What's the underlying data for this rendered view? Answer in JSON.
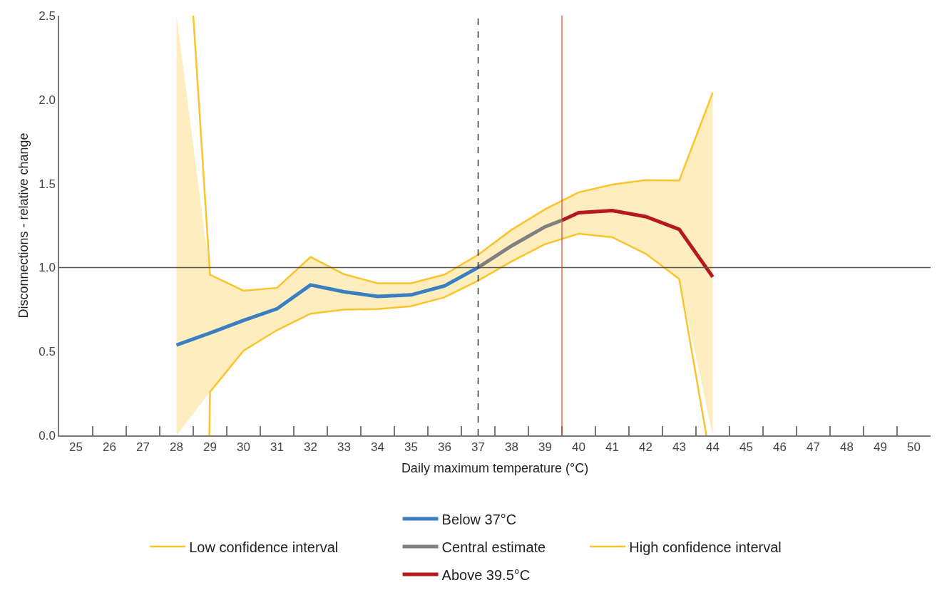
{
  "chart_data": {
    "type": "line",
    "xlabel": "Daily maximum temperature (°C)",
    "ylabel": "Disconnections - relative change",
    "xlim": [
      24.5,
      50.5
    ],
    "xticks": [
      25,
      26,
      27,
      28,
      29,
      30,
      31,
      32,
      33,
      34,
      35,
      36,
      37,
      38,
      39,
      40,
      41,
      42,
      43,
      44,
      45,
      46,
      47,
      48,
      49,
      50,
      {
        "value": 25.5,
        "label": null
      },
      {
        "value": 26.5,
        "label": null
      },
      {
        "value": 27.5,
        "label": null
      },
      {
        "value": 28.5,
        "label": null
      },
      {
        "value": 29.5,
        "label": null
      },
      {
        "value": 30.5,
        "label": null
      },
      {
        "value": 31.5,
        "label": null
      },
      {
        "value": 32.5,
        "label": null
      },
      {
        "value": 33.5,
        "label": null
      },
      {
        "value": 34.5,
        "label": null
      },
      {
        "value": 35.5,
        "label": null
      },
      {
        "value": 36.5,
        "label": null
      },
      {
        "value": 37.5,
        "label": null
      },
      {
        "value": 38.5,
        "label": null
      },
      {
        "value": 39.5,
        "label": null
      },
      {
        "value": 40.5,
        "label": null
      },
      {
        "value": 41.5,
        "label": null
      },
      {
        "value": 42.5,
        "label": null
      },
      {
        "value": 43.5,
        "label": null
      },
      {
        "value": 44.5,
        "label": null
      },
      {
        "value": 45.5,
        "label": null
      },
      {
        "value": 46.5,
        "label": null
      },
      {
        "value": 47.5,
        "label": null
      },
      {
        "value": 48.5,
        "label": null
      },
      {
        "value": 49.5,
        "label": null
      }
    ],
    "ylim": [
      0,
      2.5
    ],
    "yticks": [
      {
        "value": 0,
        "label": "0.0"
      },
      {
        "value": 0.5,
        "label": "0.5"
      },
      {
        "value": 1,
        "label": "1.0"
      },
      {
        "value": 1.5,
        "label": "1.5"
      },
      {
        "value": 2,
        "label": "2.0"
      },
      {
        "value": 2.5,
        "label": "2.5"
      }
    ],
    "legend": "bottom",
    "marker": "none",
    "line_style": "solid",
    "series": [
      {
        "name": "Low confidence interval",
        "color": "#fcc42b",
        "x": [
          28.98,
          29,
          30,
          31,
          32,
          33,
          34,
          35,
          36,
          37,
          38,
          39,
          40,
          41,
          42,
          43,
          43.81
        ],
        "values": [
          0,
          0.259,
          0.504,
          0.627,
          0.725,
          0.749,
          0.752,
          0.769,
          0.823,
          0.922,
          1.036,
          1.139,
          1.201,
          1.18,
          1.082,
          0.932,
          0
        ]
      },
      {
        "name": "High confidence interval",
        "color": "#fcc42b",
        "x": [
          28.5,
          29,
          30,
          31,
          32,
          33,
          34,
          35,
          36,
          37,
          38,
          39,
          40,
          41,
          42,
          43,
          44
        ],
        "values": [
          2.5,
          0.957,
          0.862,
          0.879,
          1.063,
          0.96,
          0.906,
          0.906,
          0.958,
          1.076,
          1.225,
          1.347,
          1.448,
          1.494,
          1.521,
          1.518,
          2.042
        ]
      },
      {
        "name": "Below 37°C",
        "color": "#3a7fc1",
        "x": [
          28,
          29,
          30,
          31,
          32,
          33,
          34,
          35,
          36,
          37
        ],
        "values": [
          0.538,
          0.61,
          0.685,
          0.754,
          0.896,
          0.855,
          0.828,
          0.837,
          0.891,
          1.0
        ],
        "lower": [
          0,
          0.259,
          0.504,
          0.627,
          0.725,
          0.749,
          0.752,
          0.769,
          0.823,
          0.922
        ],
        "upper": [
          2.5,
          0.957,
          0.862,
          0.879,
          1.063,
          0.96,
          0.906,
          0.906,
          0.958,
          1.076
        ]
      },
      {
        "name": "Central estimate",
        "color": "#808080",
        "x": [
          37,
          38,
          39,
          39.5
        ],
        "values": [
          1.0,
          1.129,
          1.243,
          1.281
        ],
        "lower": [
          0.922,
          1.036,
          1.139,
          1.172
        ],
        "upper": [
          1.076,
          1.225,
          1.347,
          1.4
        ]
      },
      {
        "name": "Above 39.5°C",
        "color": "#b5191e",
        "x": [
          39.5,
          40,
          41,
          42,
          43,
          44
        ],
        "values": [
          1.281,
          1.326,
          1.339,
          1.303,
          1.227,
          0.944
        ],
        "lower": [
          1.172,
          1.201,
          1.18,
          1.082,
          0.932,
          0
        ],
        "upper": [
          1.4,
          1.448,
          1.494,
          1.521,
          1.518,
          2.042
        ]
      }
    ],
    "ref_lines": [
      {
        "axis": "y",
        "value": 1.0,
        "color": "#555555",
        "line_style": "solid"
      },
      {
        "axis": "x",
        "value": 37,
        "color": "#333333",
        "line_style": "dashed"
      },
      {
        "axis": "x",
        "value": 39.5,
        "color": "#e0442c",
        "line_style": "solid"
      }
    ]
  }
}
